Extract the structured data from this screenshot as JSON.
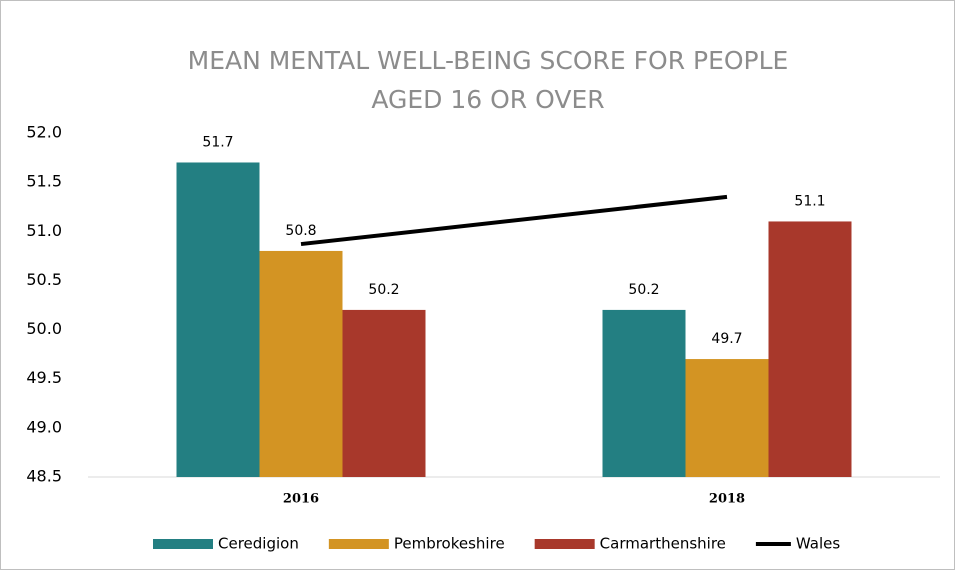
{
  "chart_data": {
    "type": "bar",
    "title": "MEAN MENTAL WELL-BEING SCORE FOR PEOPLE",
    "subtitle": "AGED 16 OR OVER",
    "categories": [
      "2016",
      "2018"
    ],
    "series": [
      {
        "name": "Ceredigion",
        "color": "#237f82",
        "values": [
          51.7,
          50.2
        ]
      },
      {
        "name": "Pembrokeshire",
        "color": "#d39423",
        "values": [
          50.8,
          49.7
        ]
      },
      {
        "name": "Carmarthenshire",
        "color": "#a8382b",
        "values": [
          50.2,
          51.1
        ]
      },
      {
        "name": "Wales",
        "color": "#000000",
        "type": "line",
        "values": [
          50.87,
          51.35
        ]
      }
    ],
    "ylim": [
      48.5,
      52
    ],
    "yticks": [
      {
        "value": 52,
        "label": "52.0"
      },
      51.5,
      {
        "value": 51,
        "label": "51.0"
      },
      50.5,
      {
        "value": 50,
        "label": "50.0"
      },
      49.5,
      {
        "value": 49,
        "label": "49.0"
      },
      48.5
    ],
    "grid": false,
    "legend": "bottom"
  }
}
